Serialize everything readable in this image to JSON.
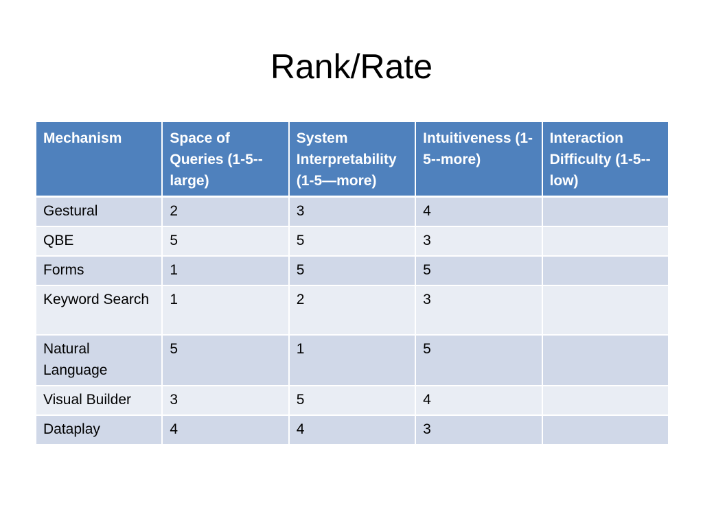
{
  "slide": {
    "title": "Rank/Rate"
  },
  "table": {
    "headers": [
      "Mechanism",
      "Space of Queries (1-5--large)",
      "System Interpretability (1-5—more)",
      "Intuitiveness (1-5--more)",
      "Interaction Difficulty (1-5--low)"
    ],
    "rows": [
      [
        "Gestural",
        "2",
        "3",
        "4",
        ""
      ],
      [
        "QBE",
        "5",
        "5",
        "3",
        ""
      ],
      [
        "Forms",
        "1",
        "5",
        "5",
        ""
      ],
      [
        "Keyword Search",
        "1",
        "2",
        "3",
        ""
      ],
      [
        "Natural Language",
        "5",
        "1",
        "5",
        ""
      ],
      [
        "Visual Builder",
        "3",
        "5",
        "4",
        ""
      ],
      [
        "Dataplay",
        "4",
        "4",
        "3",
        ""
      ]
    ]
  },
  "colors": {
    "header_bg": "#4f81bd",
    "row_odd_bg": "#d0d8e8",
    "row_even_bg": "#e9edf4"
  }
}
